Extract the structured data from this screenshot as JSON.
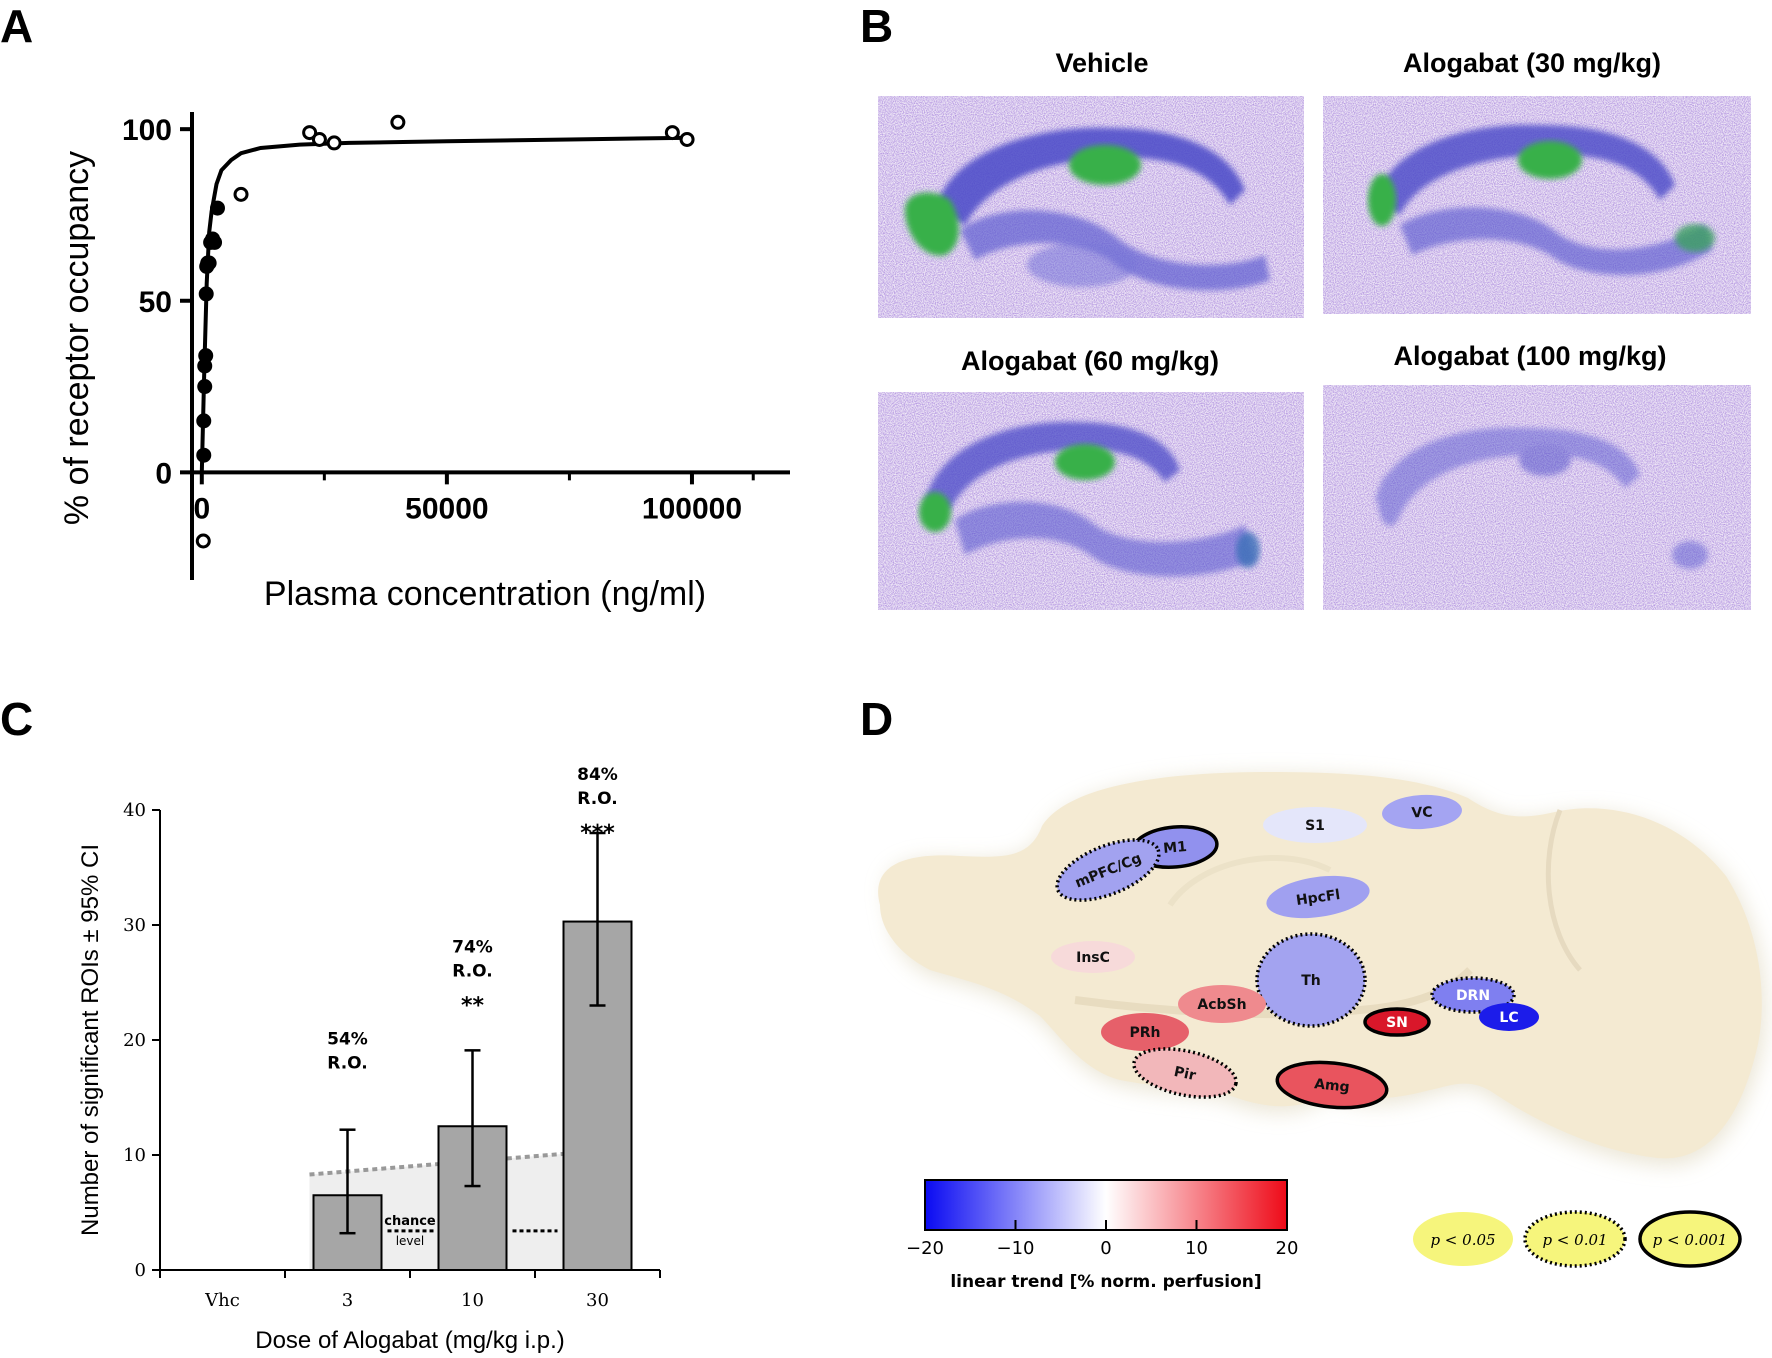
{
  "panels": {
    "a": {
      "letter": "A"
    },
    "b": {
      "letter": "B"
    },
    "c": {
      "letter": "C"
    },
    "d": {
      "letter": "D"
    }
  },
  "chart_data": [
    {
      "id": "A",
      "type": "scatter",
      "xlabel": "Plasma concentration (ng/ml)",
      "ylabel": "% of receptor occupancy",
      "xlim": [
        -2000,
        120000
      ],
      "ylim": [
        -20,
        105
      ],
      "xticks": [
        0,
        50000,
        100000
      ],
      "yticks": [
        0,
        50,
        100
      ],
      "xtick_labels": [
        "0",
        "50000",
        "100000"
      ],
      "ytick_labels": [
        "0",
        "50",
        "100"
      ],
      "grid": false,
      "series": [
        {
          "marker": "filled-circle",
          "x": [
            400,
            400,
            600,
            600,
            800,
            900,
            1000,
            1200,
            1500,
            1800,
            2200,
            2600,
            3200
          ],
          "y": [
            5,
            15,
            25,
            31,
            34,
            52,
            60,
            61,
            61,
            67,
            68,
            67,
            77
          ]
        },
        {
          "marker": "open-circle",
          "x": [
            300,
            8000,
            22000,
            24000,
            27000,
            40000,
            96000,
            99000
          ],
          "y": [
            -20,
            81,
            99,
            97,
            96,
            102,
            99,
            97
          ]
        }
      ],
      "fit_curve": {
        "x": [
          0,
          500,
          1000,
          1500,
          2000,
          3000,
          4000,
          6000,
          8000,
          12000,
          20000,
          30000,
          50000,
          75000,
          100000
        ],
        "y": [
          0,
          30,
          55,
          70,
          76,
          84,
          88,
          91,
          93,
          94.5,
          95.5,
          96,
          96.5,
          97,
          97.5
        ]
      }
    },
    {
      "id": "C",
      "type": "bar",
      "categories": [
        "Vhc",
        "3",
        "10",
        "30"
      ],
      "values": [
        0,
        6.5,
        12.5,
        30.3
      ],
      "ci_lower": [
        0,
        3.2,
        7.3,
        23
      ],
      "ci_upper": [
        0,
        12.2,
        19.1,
        38
      ],
      "bar_color": "#a6a6a6",
      "xlabel": "Dose of Alogabat (mg/kg i.p.)",
      "ylabel": "Number of significant ROIs ± 95% CI",
      "ylim": [
        0,
        40
      ],
      "yticks": [
        0,
        10,
        20,
        30,
        40
      ],
      "ytick_labels": [
        "0",
        "10",
        "20",
        "30",
        "40"
      ],
      "annotations": [
        {
          "category": "3",
          "occupancy": "54%",
          "label": "R.O.",
          "stars": "",
          "level": 17
        },
        {
          "category": "10",
          "occupancy": "74%",
          "label": "R.O.",
          "stars": "**",
          "level": 25
        },
        {
          "category": "30",
          "occupancy": "84%",
          "label": "R.O.",
          "stars": "***",
          "level": 40
        }
      ],
      "chance_level": {
        "label_top": "chance",
        "label_bottom": "level",
        "value": 3.4,
        "upper_bound": [
          8.3,
          10.1
        ]
      }
    }
  ],
  "images": {
    "titles": [
      "Vehicle",
      "Alogabat (30 mg/kg)",
      "Alogabat (60 mg/kg)",
      "Alogabat (100 mg/kg)"
    ]
  },
  "brain_map": {
    "regions": [
      {
        "label": "S1",
        "color": "#e4e6fa",
        "outline": "none"
      },
      {
        "label": "VC",
        "color": "#a4a4f2",
        "outline": "none"
      },
      {
        "label": "M1",
        "color": "#9191ee",
        "outline": "solid"
      },
      {
        "label": "mPFC/Cg",
        "color": "#a2a2f0",
        "outline": "dotted"
      },
      {
        "label": "HpcFl",
        "color": "#a0a0f0",
        "outline": "none"
      },
      {
        "label": "InsC",
        "color": "#f7dada",
        "outline": "none"
      },
      {
        "label": "Th",
        "color": "#a3a3f0",
        "outline": "dotted"
      },
      {
        "label": "AcbSh",
        "color": "#ef8a8e",
        "outline": "none"
      },
      {
        "label": "PRh",
        "color": "#e6606a",
        "outline": "none"
      },
      {
        "label": "Pir",
        "color": "#f2b7ba",
        "outline": "dotted"
      },
      {
        "label": "SN",
        "color": "#d9172a",
        "outline": "solid"
      },
      {
        "label": "DRN",
        "color": "#7f7ff0",
        "outline": "dotted"
      },
      {
        "label": "LC",
        "color": "#1c1cea",
        "outline": "none"
      },
      {
        "label": "Amg",
        "color": "#e9545e",
        "outline": "solid"
      }
    ],
    "colorbar": {
      "tick_labels": [
        "−20",
        "−10",
        "0",
        "10",
        "20"
      ],
      "title": "linear trend [% norm. perfusion]",
      "min_color": "#0a0af2",
      "mid_color": "#ffffff",
      "max_color": "#ee0a18"
    },
    "significance_legend": [
      {
        "label": "p < 0.05",
        "outline": "none"
      },
      {
        "label": "p < 0.01",
        "outline": "dotted"
      },
      {
        "label": "p < 0.001",
        "outline": "solid"
      }
    ],
    "legend_fill": "#f6f57c"
  }
}
